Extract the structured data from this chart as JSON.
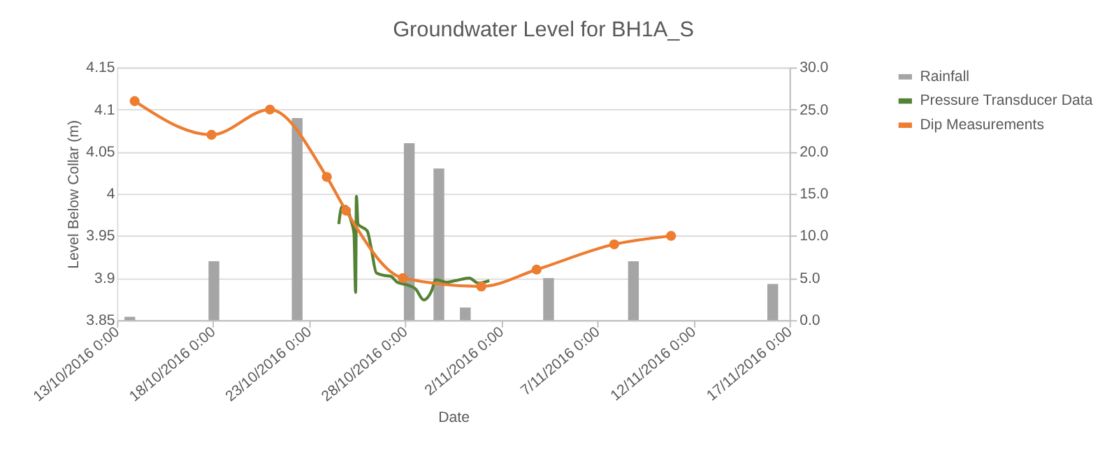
{
  "chart_data": {
    "type": "line",
    "title": "Groundwater Level for BH1A_S",
    "xlabel": "Date",
    "ylabel": "Level Below Collar (m)",
    "xlim": [
      "2016-10-13",
      "2016-11-17"
    ],
    "xticks": [
      {
        "value": "2016-10-13",
        "label": "13/10/2016 0:00"
      },
      {
        "value": "2016-10-18",
        "label": "18/10/2016 0:00"
      },
      {
        "value": "2016-10-23",
        "label": "23/10/2016 0:00"
      },
      {
        "value": "2016-10-28",
        "label": "28/10/2016 0:00"
      },
      {
        "value": "2016-11-02",
        "label": "2/11/2016 0:00"
      },
      {
        "value": "2016-11-07",
        "label": "7/11/2016 0:00"
      },
      {
        "value": "2016-11-12",
        "label": "12/11/2016 0:00"
      },
      {
        "value": "2016-11-17",
        "label": "17/11/2016 0:00"
      }
    ],
    "ylim": [
      3.85,
      4.15
    ],
    "yticks": [
      3.85,
      3.9,
      3.95,
      4,
      4.05,
      4.1,
      4.15
    ],
    "y2lim": [
      0,
      30
    ],
    "y2ticks": [
      {
        "value": 0,
        "label": "0.0"
      },
      {
        "value": 5,
        "label": "5.0"
      },
      {
        "value": 10,
        "label": "10.0"
      },
      {
        "value": 15,
        "label": "15.0"
      },
      {
        "value": 20,
        "label": "20.0"
      },
      {
        "value": 25,
        "label": "25.0"
      },
      {
        "value": 30,
        "label": "30.0"
      }
    ],
    "grid": "y",
    "legend": "right",
    "series": [
      {
        "name": "Rainfall",
        "type": "bar",
        "axis": "y2",
        "color": "#a5a5a5",
        "x": [
          "2016-10-13T16:00",
          "2016-10-18T01:00",
          "2016-10-22T09:00",
          "2016-10-28T05:00",
          "2016-10-29T18:00",
          "2016-10-31T03:00",
          "2016-11-04T11:00",
          "2016-11-08T21:00",
          "2016-11-16T03:00"
        ],
        "values": [
          0.4,
          7,
          24,
          21,
          18,
          1.5,
          5,
          7,
          4.3
        ]
      },
      {
        "name": "Pressure Transducer Data",
        "color": "#548235",
        "marker": "none",
        "x": [
          "2016-10-24T13:00",
          "2016-10-24T17:00",
          "2016-10-24T22:00",
          "2016-10-25T04:00",
          "2016-10-25T08:00",
          "2016-10-25T10:00",
          "2016-10-25T11:00",
          "2016-10-25T13:00",
          "2016-10-26T00:30",
          "2016-10-26T05:00",
          "2016-10-26T12:00",
          "2016-10-26T22:00",
          "2016-10-27T06:00",
          "2016-10-27T14:00",
          "2016-10-28T02:00",
          "2016-10-28T13:00",
          "2016-10-28T23:00",
          "2016-10-29T09:00",
          "2016-10-29T14:00",
          "2016-10-30T04:00",
          "2016-10-30T15:00",
          "2016-10-31T08:00",
          "2016-10-31T19:00",
          "2016-11-01T09:00"
        ],
        "values": [
          3.964,
          3.985,
          3.985,
          3.969,
          3.953,
          3.883,
          3.997,
          3.964,
          3.956,
          3.938,
          3.906,
          3.903,
          3.902,
          3.895,
          3.892,
          3.887,
          3.874,
          3.885,
          3.898,
          3.895,
          3.897,
          3.9,
          3.894,
          3.897
        ]
      },
      {
        "name": "Dip Measurements",
        "color": "#ed7d31",
        "marker": "circle",
        "x": [
          "2016-10-13T22:00",
          "2016-10-17T22:00",
          "2016-10-20T23:00",
          "2016-10-23T22:00",
          "2016-10-24T22:00",
          "2016-10-27T21:00",
          "2016-10-31T23:00",
          "2016-11-03T20:00",
          "2016-11-07T21:00",
          "2016-11-10T20:00"
        ],
        "values": [
          4.11,
          4.07,
          4.1,
          4.02,
          3.98,
          3.9,
          3.89,
          3.91,
          3.94,
          3.95
        ]
      }
    ]
  }
}
